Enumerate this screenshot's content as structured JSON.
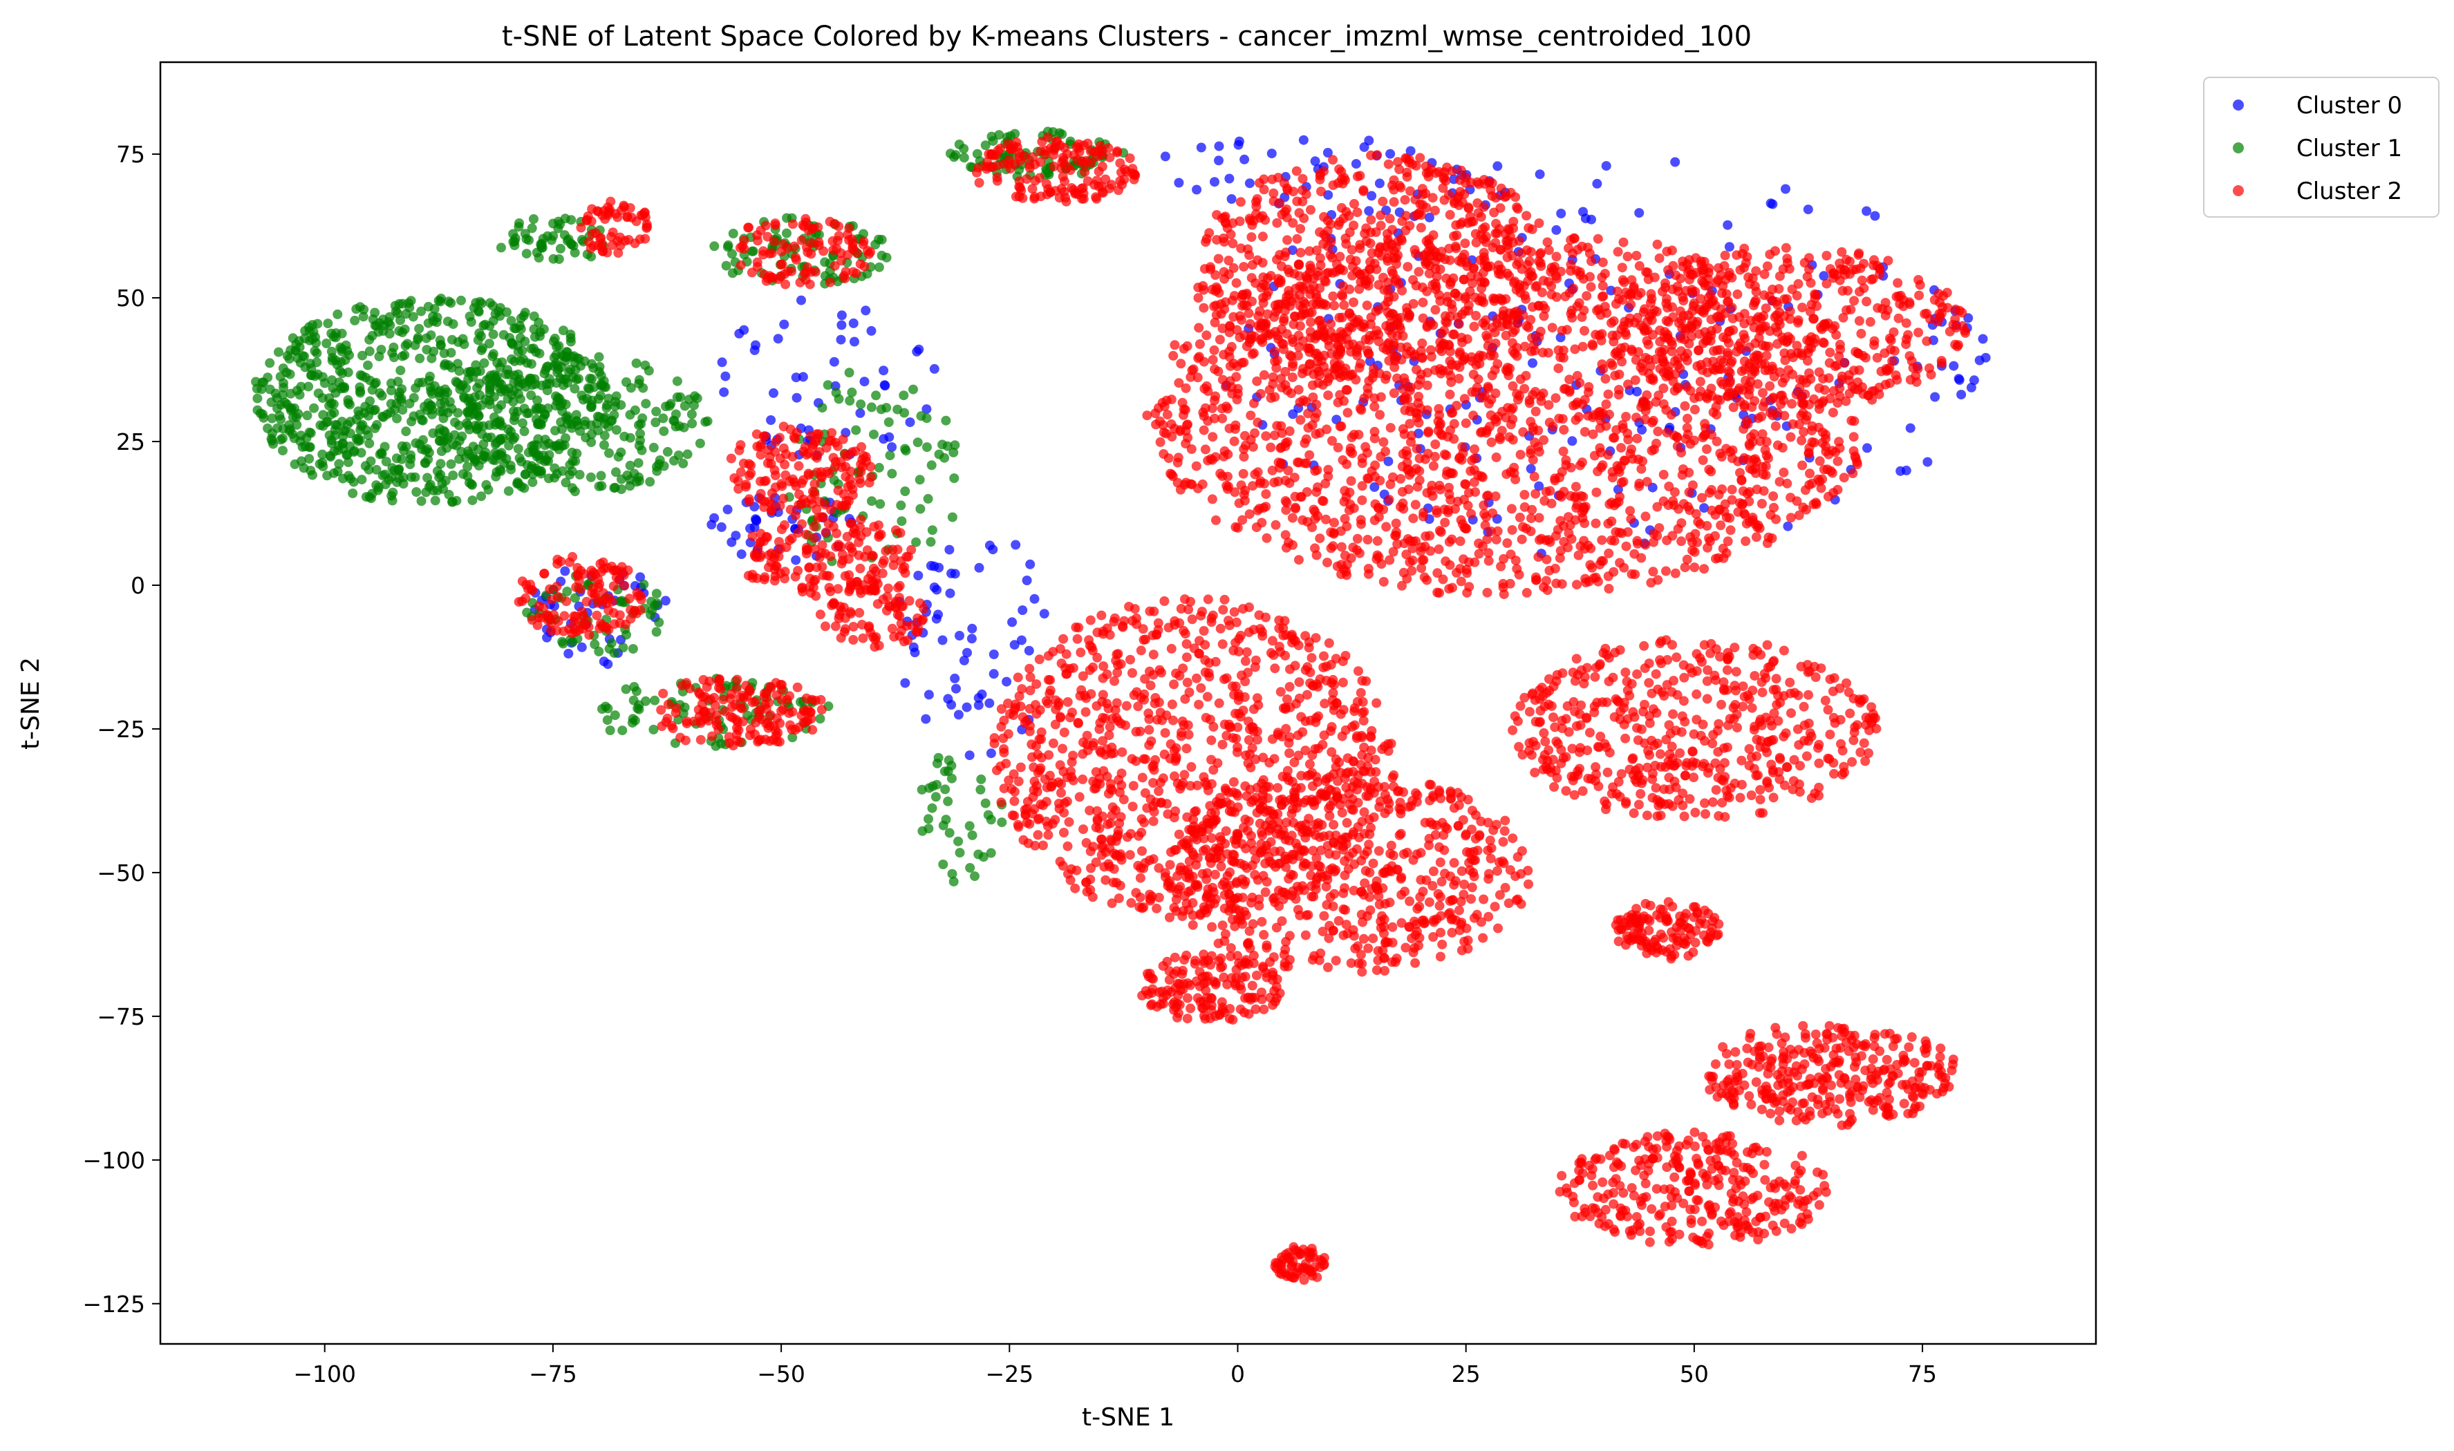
{
  "chart_data": {
    "type": "scatter",
    "title": "t-SNE of Latent Space Colored by K-means Clusters - cancer_imzml_wmse_centroided_100",
    "xlabel": "t-SNE 1",
    "ylabel": "t-SNE 2",
    "xlim": [
      -118,
      94
    ],
    "ylim": [
      -132,
      91
    ],
    "xticks": [
      -100,
      -75,
      -50,
      -25,
      0,
      25,
      50,
      75
    ],
    "yticks": [
      -125,
      -100,
      -75,
      -50,
      -25,
      0,
      25,
      50,
      75
    ],
    "xtick_labels": [
      "−100",
      "−75",
      "−50",
      "−25",
      "0",
      "25",
      "50",
      "75"
    ],
    "ytick_labels": [
      "−125",
      "−100",
      "−75",
      "−50",
      "−25",
      "0",
      "25",
      "50",
      "75"
    ],
    "grid": false,
    "legend_position": "outside-top-right",
    "series": [
      {
        "name": "Cluster 0",
        "color": "#0000ff",
        "regions": [
          {
            "cx": 40,
            "cy": 40,
            "rx": 42,
            "ry": 35,
            "n": 180
          },
          {
            "cx": -50,
            "cy": 10,
            "rx": 8,
            "ry": 6,
            "n": 40
          },
          {
            "cx": -28,
            "cy": -10,
            "rx": 10,
            "ry": 20,
            "n": 60
          },
          {
            "cx": -70,
            "cy": -5,
            "rx": 8,
            "ry": 9,
            "n": 40
          },
          {
            "cx": -45,
            "cy": 35,
            "rx": 12,
            "ry": 15,
            "n": 50
          },
          {
            "cx": 10,
            "cy": 72,
            "rx": 20,
            "ry": 6,
            "n": 40
          },
          {
            "cx": 78,
            "cy": 40,
            "rx": 4,
            "ry": 8,
            "n": 15
          }
        ]
      },
      {
        "name": "Cluster 1",
        "color": "#008000",
        "regions": [
          {
            "cx": -88,
            "cy": 32,
            "rx": 20,
            "ry": 18,
            "n": 800
          },
          {
            "cx": -72,
            "cy": 28,
            "rx": 14,
            "ry": 12,
            "n": 200
          },
          {
            "cx": -75,
            "cy": 60,
            "rx": 6,
            "ry": 4,
            "n": 50
          },
          {
            "cx": -48,
            "cy": 58,
            "rx": 10,
            "ry": 6,
            "n": 80
          },
          {
            "cx": -22,
            "cy": 75,
            "rx": 10,
            "ry": 4,
            "n": 80
          },
          {
            "cx": -40,
            "cy": 20,
            "rx": 10,
            "ry": 18,
            "n": 80
          },
          {
            "cx": -70,
            "cy": -5,
            "rx": 8,
            "ry": 7,
            "n": 60
          },
          {
            "cx": -57,
            "cy": -22,
            "rx": 14,
            "ry": 6,
            "n": 80
          },
          {
            "cx": -30,
            "cy": -40,
            "rx": 5,
            "ry": 12,
            "n": 40
          }
        ]
      },
      {
        "name": "Cluster 2",
        "color": "#ff0000",
        "regions": [
          {
            "cx": 30,
            "cy": 30,
            "rx": 40,
            "ry": 32,
            "n": 1800
          },
          {
            "cx": 15,
            "cy": 55,
            "rx": 20,
            "ry": 20,
            "n": 600
          },
          {
            "cx": -5,
            "cy": -30,
            "rx": 22,
            "ry": 28,
            "n": 900
          },
          {
            "cx": 12,
            "cy": -50,
            "rx": 20,
            "ry": 18,
            "n": 600
          },
          {
            "cx": 50,
            "cy": -25,
            "rx": 20,
            "ry": 16,
            "n": 500
          },
          {
            "cx": 60,
            "cy": 45,
            "rx": 20,
            "ry": 14,
            "n": 400
          },
          {
            "cx": -20,
            "cy": 72,
            "rx": 9,
            "ry": 6,
            "n": 150
          },
          {
            "cx": -48,
            "cy": 20,
            "rx": 8,
            "ry": 8,
            "n": 150
          },
          {
            "cx": -45,
            "cy": 5,
            "rx": 10,
            "ry": 7,
            "n": 150
          },
          {
            "cx": -55,
            "cy": -22,
            "rx": 10,
            "ry": 6,
            "n": 150
          },
          {
            "cx": -72,
            "cy": -2,
            "rx": 7,
            "ry": 7,
            "n": 120
          },
          {
            "cx": -68,
            "cy": 62,
            "rx": 4,
            "ry": 5,
            "n": 60
          },
          {
            "cx": -48,
            "cy": 58,
            "rx": 8,
            "ry": 6,
            "n": 100
          },
          {
            "cx": -40,
            "cy": -5,
            "rx": 6,
            "ry": 6,
            "n": 80
          },
          {
            "cx": 47,
            "cy": -60,
            "rx": 6,
            "ry": 5,
            "n": 120
          },
          {
            "cx": 65,
            "cy": -85,
            "rx": 14,
            "ry": 9,
            "n": 300
          },
          {
            "cx": 50,
            "cy": -105,
            "rx": 15,
            "ry": 10,
            "n": 300
          },
          {
            "cx": 7,
            "cy": -118,
            "rx": 3,
            "ry": 3,
            "n": 60
          },
          {
            "cx": -3,
            "cy": -70,
            "rx": 8,
            "ry": 6,
            "n": 150
          }
        ]
      }
    ]
  }
}
